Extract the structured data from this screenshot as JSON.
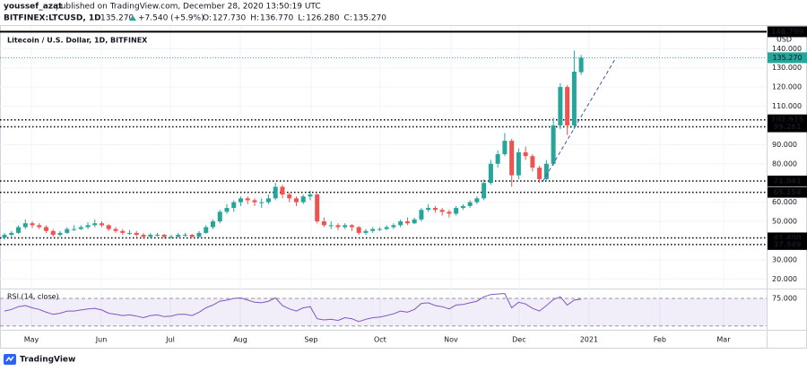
{
  "publisher": "youssef_azat",
  "published": "published on TradingView.com, December 28, 2020 13:50:19 UTC",
  "footer": "TradingView",
  "chart_data": {
    "type": "candlestick",
    "symbol": "BITFINEX:LTCUSD, 1D",
    "last": "135.270",
    "change": "+7.540 (+5.9%)",
    "ohlc_legend": [
      {
        "label": "O:",
        "value": "127.730"
      },
      {
        "label": "H:",
        "value": "136.770"
      },
      {
        "label": "L:",
        "value": "126.280"
      },
      {
        "label": "C:",
        "value": "135.270"
      }
    ],
    "title": "Litecoin / U.S. Dollar, 1D, BITFINEX",
    "currency": "USD",
    "up_color": "#26a69a",
    "down_color": "#ef5350",
    "grid": true,
    "candles": [
      [
        41.5,
        44,
        40.5,
        43
      ],
      [
        43,
        45,
        42,
        44
      ],
      [
        44,
        48,
        43.5,
        47
      ],
      [
        47,
        51,
        46,
        49
      ],
      [
        49,
        50,
        46.5,
        48
      ],
      [
        48,
        49,
        46,
        47
      ],
      [
        47,
        48,
        44,
        45
      ],
      [
        45,
        46,
        42,
        43
      ],
      [
        43,
        45,
        42,
        44
      ],
      [
        44,
        47,
        43.5,
        46
      ],
      [
        46,
        48,
        45,
        46
      ],
      [
        46,
        48,
        45.5,
        47
      ],
      [
        47,
        49.5,
        46,
        48
      ],
      [
        48,
        51,
        47,
        49
      ],
      [
        49,
        50,
        47,
        48
      ],
      [
        48,
        48.5,
        45,
        46
      ],
      [
        46,
        47,
        44,
        45
      ],
      [
        45,
        46,
        43,
        44
      ],
      [
        44,
        45.5,
        43,
        44
      ],
      [
        44,
        45,
        42,
        43
      ],
      [
        43,
        44,
        41,
        42
      ],
      [
        42,
        44,
        41.5,
        43
      ],
      [
        43,
        44,
        42,
        43
      ],
      [
        43,
        43.5,
        41,
        42
      ],
      [
        42,
        43,
        41,
        42
      ],
      [
        42,
        44,
        41.5,
        43
      ],
      [
        43,
        44,
        42,
        43
      ],
      [
        43,
        43.5,
        41.5,
        42
      ],
      [
        42,
        45,
        41.5,
        44
      ],
      [
        44,
        48,
        43.5,
        47
      ],
      [
        47,
        51,
        46,
        50
      ],
      [
        50,
        56,
        49,
        55
      ],
      [
        55,
        59,
        54,
        57
      ],
      [
        57,
        61,
        55,
        60
      ],
      [
        60,
        63,
        58,
        62
      ],
      [
        62,
        63,
        59,
        61
      ],
      [
        61,
        62,
        58,
        60
      ],
      [
        60,
        62,
        57,
        60
      ],
      [
        60,
        64,
        59,
        62
      ],
      [
        62,
        70,
        61,
        68
      ],
      [
        68,
        69,
        62,
        64
      ],
      [
        64,
        65,
        60,
        62
      ],
      [
        62,
        63,
        58,
        60
      ],
      [
        60,
        64,
        59,
        63
      ],
      [
        63,
        66,
        61,
        64
      ],
      [
        64,
        64.5,
        49,
        50
      ],
      [
        50,
        52,
        47,
        48
      ],
      [
        48,
        50,
        46,
        48
      ],
      [
        48,
        49,
        45.5,
        47
      ],
      [
        47,
        49,
        46,
        48
      ],
      [
        48,
        48.5,
        45,
        47
      ],
      [
        47,
        47.5,
        43,
        44
      ],
      [
        44,
        46,
        43,
        45
      ],
      [
        45,
        47,
        44,
        46
      ],
      [
        46,
        47,
        45,
        46
      ],
      [
        46,
        48,
        45.5,
        47
      ],
      [
        47,
        49,
        46,
        48
      ],
      [
        48,
        51,
        47,
        50
      ],
      [
        50,
        52,
        48,
        49
      ],
      [
        49,
        52,
        48.5,
        51
      ],
      [
        51,
        57,
        50,
        56
      ],
      [
        56,
        59,
        55,
        57
      ],
      [
        57,
        58,
        54.5,
        56
      ],
      [
        56,
        57,
        53,
        55
      ],
      [
        55,
        56,
        52,
        54
      ],
      [
        54,
        58,
        53,
        57
      ],
      [
        57,
        59,
        56,
        58
      ],
      [
        58,
        61,
        57,
        60
      ],
      [
        60,
        63,
        59,
        62
      ],
      [
        62,
        72,
        61,
        70
      ],
      [
        70,
        82,
        69,
        80
      ],
      [
        80,
        87,
        78,
        85
      ],
      [
        85,
        96,
        84,
        92
      ],
      [
        92,
        93,
        68,
        74
      ],
      [
        74,
        88,
        72,
        86
      ],
      [
        86,
        89,
        82,
        84
      ],
      [
        84,
        85,
        76,
        78
      ],
      [
        78,
        79,
        70,
        72
      ],
      [
        72,
        82,
        71,
        80
      ],
      [
        80,
        104,
        79,
        100
      ],
      [
        100,
        122,
        98,
        120
      ],
      [
        120,
        121,
        95,
        100
      ],
      [
        100,
        139,
        98,
        128
      ],
      [
        127.73,
        136.77,
        126.28,
        135.27
      ]
    ],
    "xlim": [
      -0.65,
      109.7
    ],
    "xticks": [
      {
        "value": 3.87,
        "label": "May"
      },
      {
        "value": 13.94,
        "label": "Jun"
      },
      {
        "value": 23.87,
        "label": "Jul"
      },
      {
        "value": 33.94,
        "label": "Aug"
      },
      {
        "value": 44.13,
        "label": "Sep"
      },
      {
        "value": 54.06,
        "label": "Oct"
      },
      {
        "value": 64.26,
        "label": "Nov"
      },
      {
        "value": 74.06,
        "label": "Dec"
      },
      {
        "value": 84.13,
        "label": "2021"
      },
      {
        "value": 94.32,
        "label": "Feb"
      },
      {
        "value": 103.5,
        "label": "Mar"
      }
    ],
    "ylim": [
      15,
      149
    ],
    "yticks": [
      {
        "value": 140,
        "label": "140.000"
      },
      {
        "value": 130,
        "label": "130.000"
      },
      {
        "value": 120,
        "label": "120.000"
      },
      {
        "value": 110,
        "label": "110.000"
      },
      {
        "value": 90,
        "label": "90.000"
      },
      {
        "value": 80,
        "label": "80.000"
      },
      {
        "value": 60,
        "label": "60.000"
      },
      {
        "value": 50,
        "label": "50.000"
      },
      {
        "value": 30,
        "label": "30.000"
      },
      {
        "value": 20,
        "label": "20.000"
      }
    ],
    "levels": [
      {
        "value": 148.799,
        "label": "148.799"
      },
      {
        "value": 102.915,
        "label": "102.915"
      },
      {
        "value": 99.261,
        "label": "99.261"
      },
      {
        "value": 71.041,
        "label": "71.041"
      },
      {
        "value": 65.154,
        "label": "65.154"
      },
      {
        "value": 41.4,
        "label": "41.400"
      },
      {
        "value": 37.949,
        "label": "37.949"
      }
    ],
    "last_price": {
      "value": 135.27,
      "label": "135.270"
    },
    "rsi": {
      "name": "RSI (14, close)",
      "color": "#7e57c2",
      "values": [
        52,
        55,
        60,
        62,
        58,
        55,
        50,
        46,
        48,
        52,
        52,
        54,
        56,
        57,
        54,
        48,
        46,
        44,
        45,
        43,
        40,
        44,
        45,
        42,
        43,
        46,
        46,
        44,
        50,
        58,
        63,
        70,
        72,
        75,
        76,
        72,
        68,
        67,
        70,
        76,
        62,
        56,
        52,
        58,
        60,
        38,
        36,
        37,
        35,
        40,
        38,
        33,
        37,
        40,
        41,
        44,
        47,
        52,
        50,
        55,
        66,
        67,
        62,
        60,
        56,
        63,
        64,
        67,
        70,
        78,
        82,
        83,
        84,
        58,
        68,
        65,
        57,
        52,
        62,
        73,
        78,
        63,
        72,
        74
      ],
      "ylim": [
        18,
        93
      ],
      "yticks": [
        {
          "value": 75,
          "label": "75.000"
        }
      ],
      "band": [
        25,
        75
      ]
    }
  }
}
